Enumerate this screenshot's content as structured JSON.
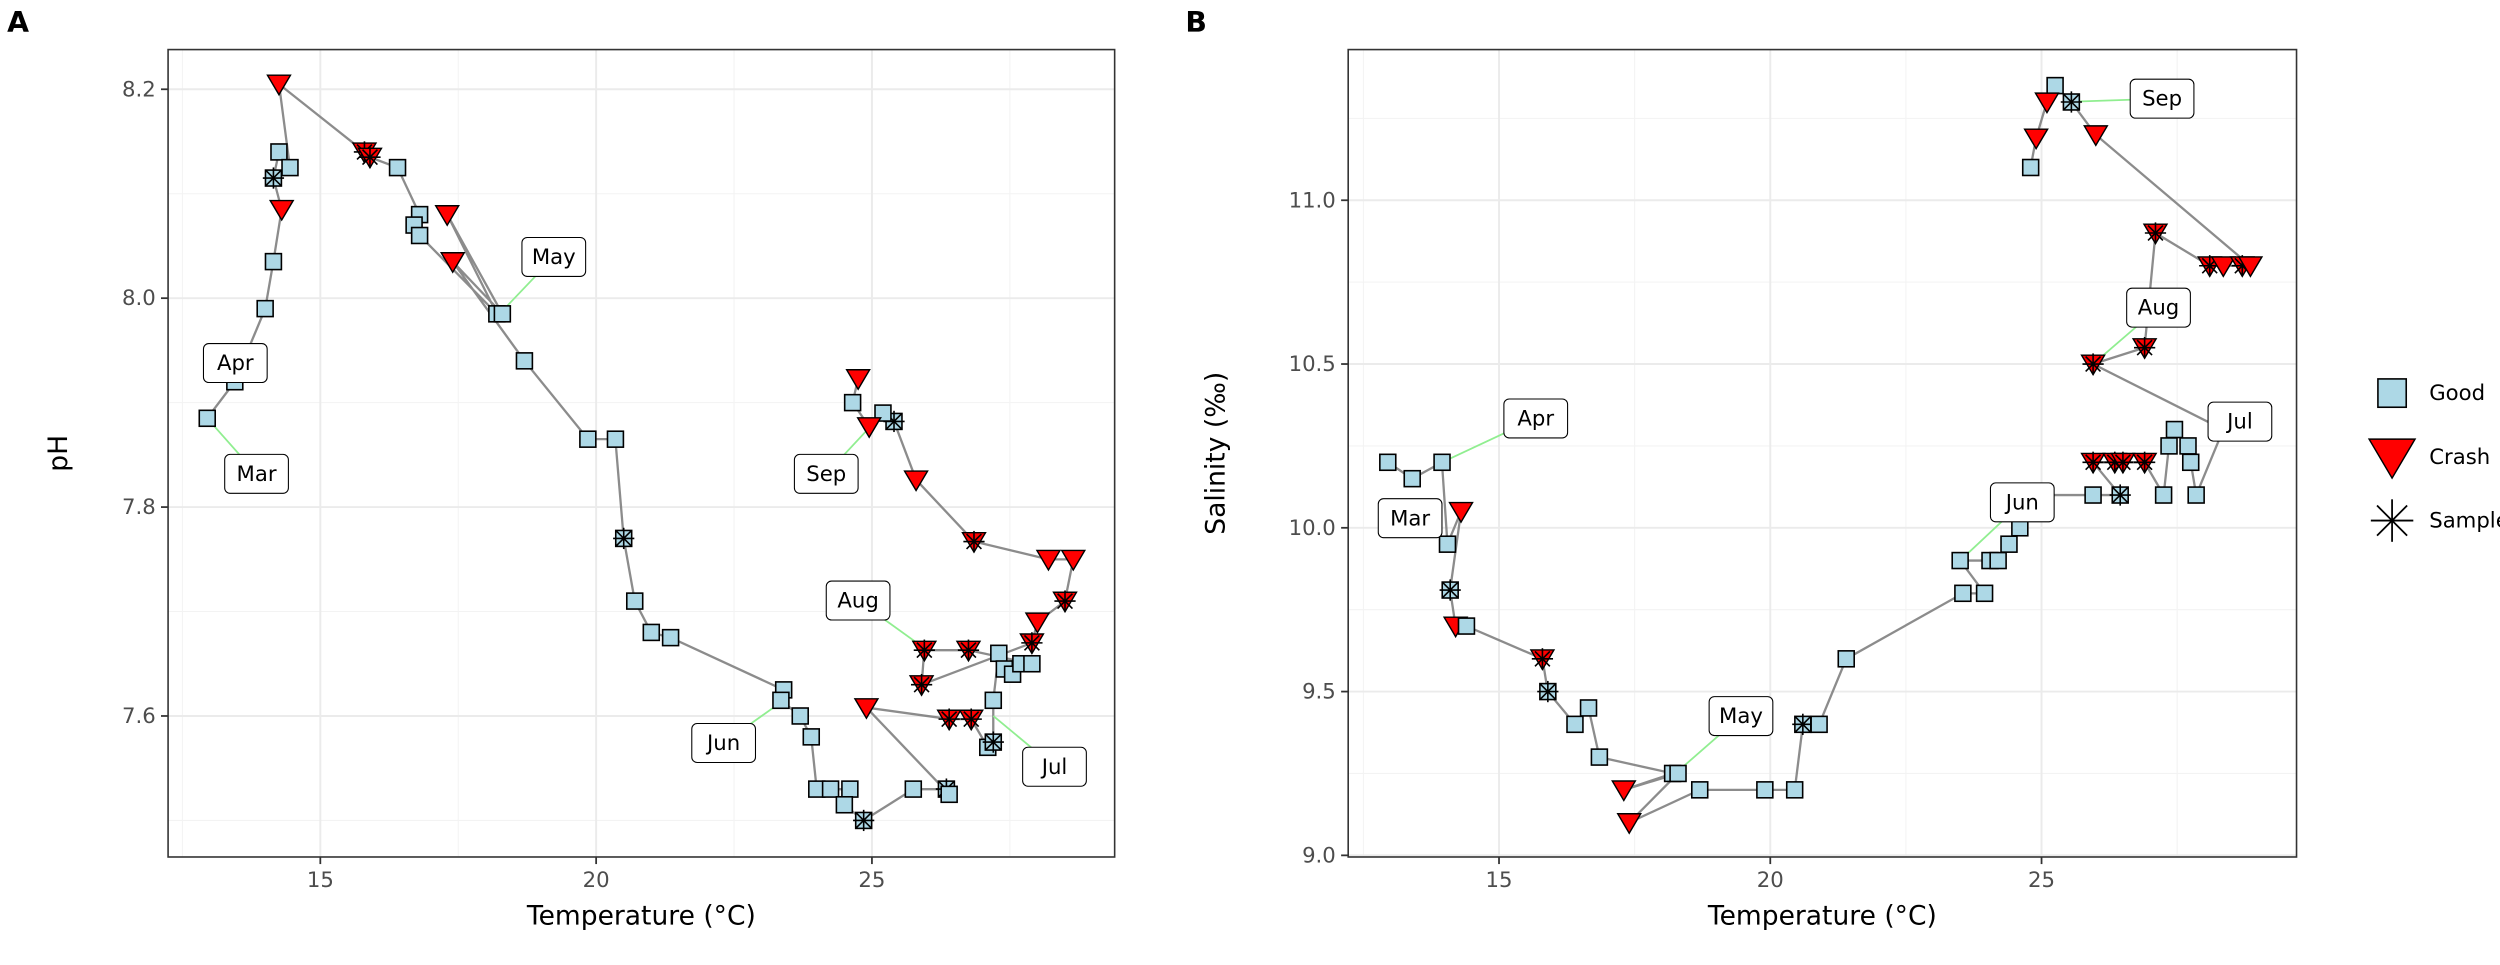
{
  "colors": {
    "good": "#add8e6",
    "crash": "#ff0000",
    "sample": "#000000",
    "path": "#7f7f7f",
    "leader": "#90ee90"
  },
  "legend": {
    "items": [
      {
        "key": "good",
        "label": "Good"
      },
      {
        "key": "crash",
        "label": "Crash"
      },
      {
        "key": "sample",
        "label": "Sample Sequenced"
      }
    ],
    "placement": "right"
  },
  "chart_data": [
    {
      "panel": "A",
      "type": "scatter",
      "xlabel": "Temperature (°C)",
      "ylabel": "pH",
      "xlim": [
        12.24,
        29.4
      ],
      "ylim": [
        7.465,
        8.238
      ],
      "xticks": [
        "15",
        "20",
        "25"
      ],
      "yticks": [
        "7.6",
        "7.8",
        "8.0",
        "8.2"
      ],
      "grid": true,
      "points": [
        {
          "t": 12.95,
          "v": 7.885,
          "s": "good",
          "q": false
        },
        {
          "t": 13.45,
          "v": 7.92,
          "s": "good",
          "q": false
        },
        {
          "t": 14.0,
          "v": 7.99,
          "s": "good",
          "q": false
        },
        {
          "t": 14.15,
          "v": 8.035,
          "s": "good",
          "q": false
        },
        {
          "t": 14.3,
          "v": 8.085,
          "s": "crash",
          "q": false
        },
        {
          "t": 14.15,
          "v": 8.115,
          "s": "good",
          "q": true
        },
        {
          "t": 14.25,
          "v": 8.14,
          "s": "good",
          "q": false
        },
        {
          "t": 14.45,
          "v": 8.125,
          "s": "good",
          "q": false
        },
        {
          "t": 14.25,
          "v": 8.205,
          "s": "crash",
          "q": false
        },
        {
          "t": 15.8,
          "v": 8.14,
          "s": "crash",
          "q": true
        },
        {
          "t": 15.9,
          "v": 8.135,
          "s": "crash",
          "q": true
        },
        {
          "t": 16.4,
          "v": 8.125,
          "s": "good",
          "q": false
        },
        {
          "t": 16.8,
          "v": 8.08,
          "s": "good",
          "q": false
        },
        {
          "t": 16.7,
          "v": 8.07,
          "s": "good",
          "q": false
        },
        {
          "t": 16.8,
          "v": 8.06,
          "s": "good",
          "q": false
        },
        {
          "t": 18.2,
          "v": 7.985,
          "s": "good",
          "q": false
        },
        {
          "t": 17.3,
          "v": 8.08,
          "s": "crash",
          "q": false
        },
        {
          "t": 18.3,
          "v": 7.985,
          "s": "good",
          "q": false
        },
        {
          "t": 17.4,
          "v": 8.035,
          "s": "crash",
          "q": false
        },
        {
          "t": 18.7,
          "v": 7.94,
          "s": "good",
          "q": false
        },
        {
          "t": 19.85,
          "v": 7.865,
          "s": "good",
          "q": false
        },
        {
          "t": 20.35,
          "v": 7.865,
          "s": "good",
          "q": false
        },
        {
          "t": 20.5,
          "v": 7.77,
          "s": "good",
          "q": true
        },
        {
          "t": 20.7,
          "v": 7.71,
          "s": "good",
          "q": false
        },
        {
          "t": 21.0,
          "v": 7.68,
          "s": "good",
          "q": false
        },
        {
          "t": 21.35,
          "v": 7.675,
          "s": "good",
          "q": false
        },
        {
          "t": 23.4,
          "v": 7.625,
          "s": "good",
          "q": false
        },
        {
          "t": 23.35,
          "v": 7.615,
          "s": "good",
          "q": false
        },
        {
          "t": 23.7,
          "v": 7.6,
          "s": "good",
          "q": false
        },
        {
          "t": 23.9,
          "v": 7.58,
          "s": "good",
          "q": false
        },
        {
          "t": 24.0,
          "v": 7.53,
          "s": "good",
          "q": false
        },
        {
          "t": 24.25,
          "v": 7.53,
          "s": "good",
          "q": false
        },
        {
          "t": 24.6,
          "v": 7.53,
          "s": "good",
          "q": false
        },
        {
          "t": 24.5,
          "v": 7.515,
          "s": "good",
          "q": false
        },
        {
          "t": 24.85,
          "v": 7.5,
          "s": "good",
          "q": true
        },
        {
          "t": 25.75,
          "v": 7.53,
          "s": "good",
          "q": false
        },
        {
          "t": 26.35,
          "v": 7.53,
          "s": "good",
          "q": true
        },
        {
          "t": 26.4,
          "v": 7.525,
          "s": "good",
          "q": false
        },
        {
          "t": 24.9,
          "v": 7.608,
          "s": "crash",
          "q": false
        },
        {
          "t": 26.4,
          "v": 7.597,
          "s": "crash",
          "q": true
        },
        {
          "t": 26.8,
          "v": 7.597,
          "s": "crash",
          "q": true
        },
        {
          "t": 27.1,
          "v": 7.57,
          "s": "good",
          "q": false
        },
        {
          "t": 27.2,
          "v": 7.575,
          "s": "good",
          "q": true
        },
        {
          "t": 27.2,
          "v": 7.615,
          "s": "good",
          "q": false
        },
        {
          "t": 27.3,
          "v": 7.66,
          "s": "good",
          "q": false
        },
        {
          "t": 27.4,
          "v": 7.645,
          "s": "good",
          "q": false
        },
        {
          "t": 27.55,
          "v": 7.64,
          "s": "good",
          "q": false
        },
        {
          "t": 27.7,
          "v": 7.65,
          "s": "good",
          "q": false
        },
        {
          "t": 27.9,
          "v": 7.65,
          "s": "good",
          "q": false
        },
        {
          "t": 26.75,
          "v": 7.663,
          "s": "crash",
          "q": true
        },
        {
          "t": 25.95,
          "v": 7.663,
          "s": "crash",
          "q": true
        },
        {
          "t": 25.9,
          "v": 7.63,
          "s": "crash",
          "q": true
        },
        {
          "t": 27.9,
          "v": 7.67,
          "s": "crash",
          "q": true
        },
        {
          "t": 28.0,
          "v": 7.69,
          "s": "crash",
          "q": false
        },
        {
          "t": 28.5,
          "v": 7.71,
          "s": "crash",
          "q": true
        },
        {
          "t": 28.65,
          "v": 7.75,
          "s": "crash",
          "q": false
        },
        {
          "t": 28.2,
          "v": 7.75,
          "s": "crash",
          "q": false
        },
        {
          "t": 26.85,
          "v": 7.767,
          "s": "crash",
          "q": true
        },
        {
          "t": 25.8,
          "v": 7.826,
          "s": "crash",
          "q": false
        },
        {
          "t": 25.4,
          "v": 7.882,
          "s": "good",
          "q": true
        },
        {
          "t": 25.2,
          "v": 7.89,
          "s": "good",
          "q": false
        },
        {
          "t": 24.95,
          "v": 7.877,
          "s": "crash",
          "q": false
        },
        {
          "t": 24.65,
          "v": 7.9,
          "s": "good",
          "q": false
        },
        {
          "t": 24.75,
          "v": 7.923,
          "s": "crash",
          "q": false
        }
      ],
      "annotations": [
        {
          "text": "Mar",
          "t": 12.95,
          "v": 7.885
        },
        {
          "text": "Apr",
          "t": 13.45,
          "v": 7.92
        },
        {
          "text": "May",
          "t": 18.25,
          "v": 7.985
        },
        {
          "text": "Jun",
          "t": 23.4,
          "v": 7.615
        },
        {
          "text": "Jul",
          "t": 27.2,
          "v": 7.6
        },
        {
          "text": "Aug",
          "t": 26.0,
          "v": 7.663
        },
        {
          "text": "Sep",
          "t": 25.2,
          "v": 7.89
        }
      ]
    },
    {
      "panel": "B",
      "type": "scatter",
      "xlabel": "Temperature (°C)",
      "ylabel": "Salinity (‰)",
      "xlim": [
        12.22,
        29.7
      ],
      "ylim": [
        8.995,
        11.46
      ],
      "xticks": [
        "15",
        "20",
        "25"
      ],
      "yticks": [
        "9.0",
        "9.5",
        "10.0",
        "10.5",
        "11.0"
      ],
      "grid": true,
      "points": [
        {
          "t": 12.95,
          "v": 10.2,
          "s": "good",
          "q": false
        },
        {
          "t": 13.4,
          "v": 10.15,
          "s": "good",
          "q": false
        },
        {
          "t": 13.95,
          "v": 10.2,
          "s": "good",
          "q": false
        },
        {
          "t": 14.05,
          "v": 9.95,
          "s": "good",
          "q": false
        },
        {
          "t": 14.3,
          "v": 10.05,
          "s": "crash",
          "q": false
        },
        {
          "t": 14.1,
          "v": 9.81,
          "s": "good",
          "q": true
        },
        {
          "t": 14.2,
          "v": 9.7,
          "s": "crash",
          "q": false
        },
        {
          "t": 14.4,
          "v": 9.7,
          "s": "good",
          "q": false
        },
        {
          "t": 15.8,
          "v": 9.6,
          "s": "crash",
          "q": true
        },
        {
          "t": 15.9,
          "v": 9.5,
          "s": "good",
          "q": true
        },
        {
          "t": 16.4,
          "v": 9.4,
          "s": "good",
          "q": false
        },
        {
          "t": 16.65,
          "v": 9.45,
          "s": "good",
          "q": false
        },
        {
          "t": 16.85,
          "v": 9.3,
          "s": "good",
          "q": false
        },
        {
          "t": 18.2,
          "v": 9.25,
          "s": "good",
          "q": false
        },
        {
          "t": 17.3,
          "v": 9.2,
          "s": "crash",
          "q": false
        },
        {
          "t": 18.3,
          "v": 9.25,
          "s": "good",
          "q": false
        },
        {
          "t": 17.4,
          "v": 9.1,
          "s": "crash",
          "q": false
        },
        {
          "t": 18.7,
          "v": 9.2,
          "s": "good",
          "q": false
        },
        {
          "t": 19.9,
          "v": 9.2,
          "s": "good",
          "q": false
        },
        {
          "t": 20.45,
          "v": 9.2,
          "s": "good",
          "q": false
        },
        {
          "t": 20.6,
          "v": 9.4,
          "s": "good",
          "q": true
        },
        {
          "t": 20.9,
          "v": 9.4,
          "s": "good",
          "q": false
        },
        {
          "t": 21.4,
          "v": 9.6,
          "s": "good",
          "q": false
        },
        {
          "t": 23.55,
          "v": 9.8,
          "s": "good",
          "q": false
        },
        {
          "t": 23.95,
          "v": 9.8,
          "s": "good",
          "q": false
        },
        {
          "t": 23.5,
          "v": 9.9,
          "s": "good",
          "q": false
        },
        {
          "t": 24.05,
          "v": 9.9,
          "s": "good",
          "q": false
        },
        {
          "t": 24.2,
          "v": 9.9,
          "s": "good",
          "q": false
        },
        {
          "t": 24.4,
          "v": 9.95,
          "s": "good",
          "q": false
        },
        {
          "t": 24.6,
          "v": 10.0,
          "s": "good",
          "q": false
        },
        {
          "t": 24.85,
          "v": 10.1,
          "s": "good",
          "q": true
        },
        {
          "t": 25.0,
          "v": 10.1,
          "s": "crash",
          "q": false
        },
        {
          "t": 25.95,
          "v": 10.1,
          "s": "good",
          "q": false
        },
        {
          "t": 26.45,
          "v": 10.1,
          "s": "good",
          "q": true
        },
        {
          "t": 25.95,
          "v": 10.2,
          "s": "crash",
          "q": true
        },
        {
          "t": 26.35,
          "v": 10.2,
          "s": "crash",
          "q": true
        },
        {
          "t": 26.5,
          "v": 10.2,
          "s": "crash",
          "q": true
        },
        {
          "t": 26.9,
          "v": 10.2,
          "s": "crash",
          "q": true
        },
        {
          "t": 27.25,
          "v": 10.1,
          "s": "good",
          "q": false
        },
        {
          "t": 27.35,
          "v": 10.25,
          "s": "good",
          "q": false
        },
        {
          "t": 27.45,
          "v": 10.3,
          "s": "good",
          "q": false
        },
        {
          "t": 27.7,
          "v": 10.25,
          "s": "good",
          "q": false
        },
        {
          "t": 27.75,
          "v": 10.2,
          "s": "good",
          "q": false
        },
        {
          "t": 27.85,
          "v": 10.1,
          "s": "good",
          "q": false
        },
        {
          "t": 28.35,
          "v": 10.3,
          "s": "good",
          "q": false
        },
        {
          "t": 25.95,
          "v": 10.5,
          "s": "crash",
          "q": true
        },
        {
          "t": 26.9,
          "v": 10.55,
          "s": "crash",
          "q": true
        },
        {
          "t": 27.1,
          "v": 10.9,
          "s": "crash",
          "q": true
        },
        {
          "t": 28.1,
          "v": 10.8,
          "s": "crash",
          "q": true
        },
        {
          "t": 28.35,
          "v": 10.8,
          "s": "crash",
          "q": false
        },
        {
          "t": 28.7,
          "v": 10.8,
          "s": "crash",
          "q": true
        },
        {
          "t": 28.85,
          "v": 10.8,
          "s": "crash",
          "q": false
        },
        {
          "t": 26.0,
          "v": 11.2,
          "s": "crash",
          "q": false
        },
        {
          "t": 25.55,
          "v": 11.3,
          "s": "good",
          "q": true
        },
        {
          "t": 25.25,
          "v": 11.35,
          "s": "good",
          "q": false
        },
        {
          "t": 25.1,
          "v": 11.3,
          "s": "crash",
          "q": false
        },
        {
          "t": 24.9,
          "v": 11.19,
          "s": "crash",
          "q": false
        },
        {
          "t": 24.8,
          "v": 11.1,
          "s": "good",
          "q": false
        }
      ],
      "annotations": [
        {
          "text": "Apr",
          "t": 13.95,
          "v": 10.2
        },
        {
          "text": "Mar",
          "t": 14.1,
          "v": 9.95
        },
        {
          "text": "May",
          "t": 18.25,
          "v": 9.25
        },
        {
          "text": "Jun",
          "t": 23.5,
          "v": 9.9
        },
        {
          "text": "Jul",
          "t": 28.35,
          "v": 10.3
        },
        {
          "text": "Aug",
          "t": 25.95,
          "v": 10.5
        },
        {
          "text": "Sep",
          "t": 25.4,
          "v": 11.3
        }
      ]
    }
  ]
}
